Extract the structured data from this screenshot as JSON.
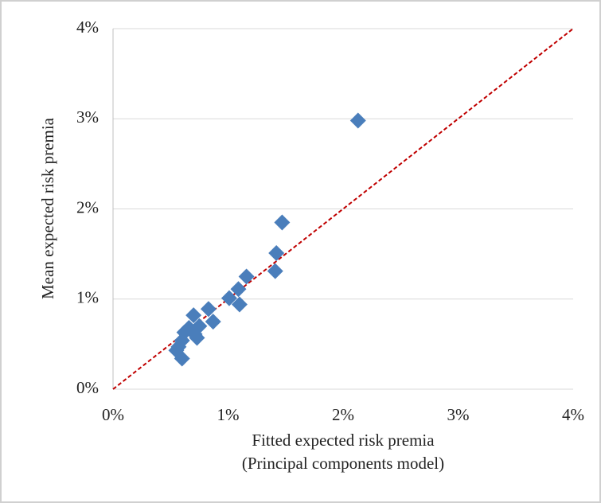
{
  "chart_data": {
    "type": "scatter",
    "ylabel": "Mean expected risk premia",
    "xlabel": [
      "Fitted expected risk premia",
      "(Principal components model)"
    ],
    "x": [
      2.13,
      1.47,
      1.42,
      1.41,
      1.16,
      1.09,
      1.01,
      1.1,
      0.83,
      0.87,
      0.7,
      0.75,
      0.71,
      0.73,
      0.62,
      0.6,
      0.57,
      0.55,
      0.6,
      0.66
    ],
    "values": [
      2.98,
      1.85,
      1.51,
      1.31,
      1.25,
      1.11,
      1.01,
      0.94,
      0.89,
      0.75,
      0.82,
      0.7,
      0.61,
      0.57,
      0.63,
      0.54,
      0.47,
      0.43,
      0.34,
      0.68
    ],
    "color": "#4a7ebb",
    "xlim": [
      0,
      4
    ],
    "ylim": [
      0,
      4
    ],
    "xticks": [
      {
        "value": 0,
        "label": "0%"
      },
      {
        "value": 1,
        "label": "1%"
      },
      {
        "value": 2,
        "label": "2%"
      },
      {
        "value": 3,
        "label": "3%"
      },
      {
        "value": 4,
        "label": "4%"
      }
    ],
    "yticks": [
      {
        "value": 0,
        "label": "0%"
      },
      {
        "value": 1,
        "label": "1%"
      },
      {
        "value": 2,
        "label": "2%"
      },
      {
        "value": 3,
        "label": "3%"
      },
      {
        "value": 4,
        "label": "4%"
      }
    ],
    "grid": true
  }
}
